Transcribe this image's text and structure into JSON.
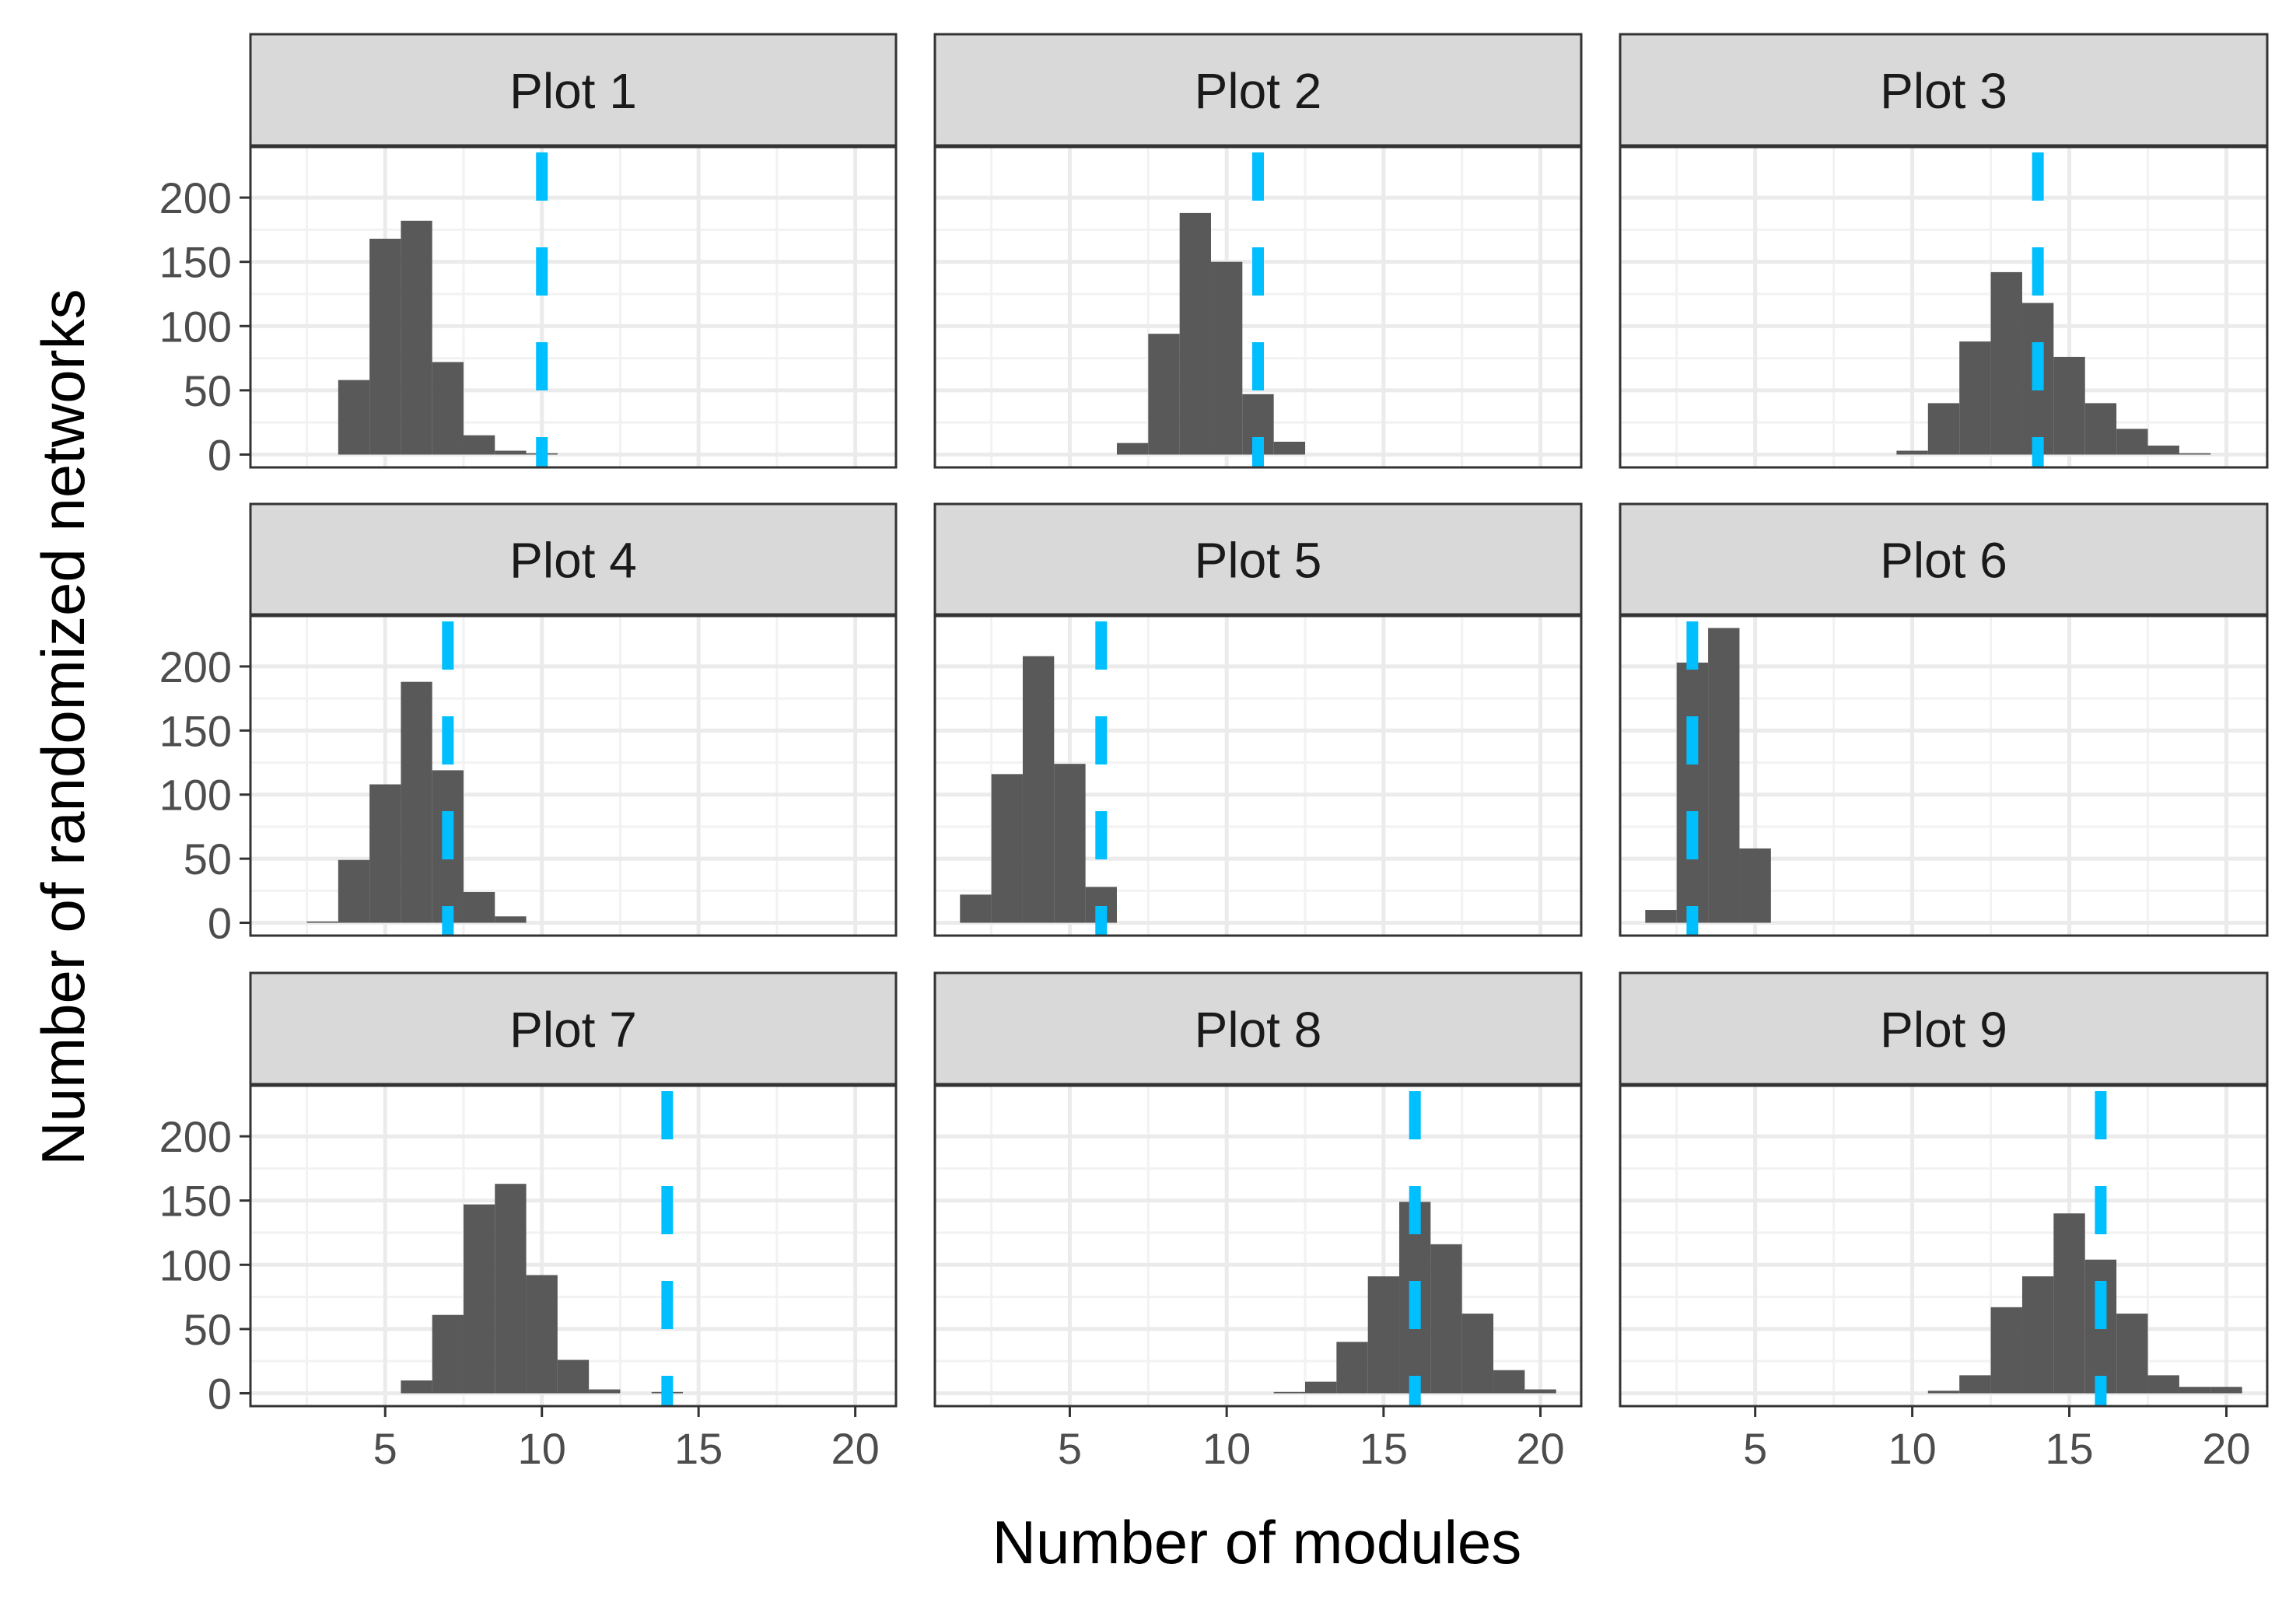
{
  "chart_data": {
    "type": "bar",
    "subtype": "faceted-histogram",
    "xlabel": "Number of modules",
    "ylabel": "Number of randomized networks",
    "xlim": [
      0.7,
      21.3
    ],
    "ylim": [
      -10,
      240
    ],
    "x_ticks": [
      5,
      10,
      15,
      20
    ],
    "y_ticks": [
      0,
      50,
      100,
      150,
      200
    ],
    "bin_width": 1,
    "grid": true,
    "colors": {
      "bars": "#595959",
      "reference_line": "#00bfff",
      "strip_fill": "#d9d9d9"
    },
    "panels": [
      {
        "title": "Plot 1",
        "reference": 10,
        "bins": [
          [
            4,
            58
          ],
          [
            5,
            168
          ],
          [
            6,
            182
          ],
          [
            7,
            72
          ],
          [
            8,
            15
          ],
          [
            9,
            3
          ],
          [
            10,
            1
          ]
        ]
      },
      {
        "title": "Plot 2",
        "reference": 11,
        "bins": [
          [
            7,
            9
          ],
          [
            8,
            94
          ],
          [
            9,
            188
          ],
          [
            10,
            150
          ],
          [
            11,
            47
          ],
          [
            12,
            10
          ]
        ]
      },
      {
        "title": "Plot 3",
        "reference": 14,
        "bins": [
          [
            10,
            3
          ],
          [
            11,
            40
          ],
          [
            12,
            88
          ],
          [
            13,
            142
          ],
          [
            14,
            118
          ],
          [
            15,
            76
          ],
          [
            16,
            40
          ],
          [
            17,
            20
          ],
          [
            18,
            7
          ],
          [
            19,
            1
          ]
        ]
      },
      {
        "title": "Plot 4",
        "reference": 7,
        "bins": [
          [
            3,
            1
          ],
          [
            4,
            49
          ],
          [
            5,
            108
          ],
          [
            6,
            188
          ],
          [
            7,
            119
          ],
          [
            8,
            24
          ],
          [
            9,
            5
          ]
        ]
      },
      {
        "title": "Plot 5",
        "reference": 6,
        "bins": [
          [
            2,
            22
          ],
          [
            3,
            116
          ],
          [
            4,
            208
          ],
          [
            5,
            124
          ],
          [
            6,
            28
          ]
        ]
      },
      {
        "title": "Plot 6",
        "reference": 3,
        "bins": [
          [
            2,
            10
          ],
          [
            3,
            203
          ],
          [
            4,
            230
          ],
          [
            5,
            58
          ]
        ]
      },
      {
        "title": "Plot 7",
        "reference": 14,
        "bins": [
          [
            6,
            10
          ],
          [
            7,
            61
          ],
          [
            8,
            147
          ],
          [
            9,
            163
          ],
          [
            10,
            92
          ],
          [
            11,
            26
          ],
          [
            12,
            3
          ],
          [
            14,
            1
          ]
        ]
      },
      {
        "title": "Plot 8",
        "reference": 16,
        "bins": [
          [
            12,
            1
          ],
          [
            13,
            9
          ],
          [
            14,
            40
          ],
          [
            15,
            91
          ],
          [
            16,
            149
          ],
          [
            17,
            116
          ],
          [
            18,
            62
          ],
          [
            19,
            18
          ],
          [
            20,
            3
          ]
        ]
      },
      {
        "title": "Plot 9",
        "reference": 16,
        "bins": [
          [
            11,
            2
          ],
          [
            12,
            14
          ],
          [
            13,
            67
          ],
          [
            14,
            91
          ],
          [
            15,
            140
          ],
          [
            16,
            104
          ],
          [
            17,
            62
          ],
          [
            18,
            14
          ],
          [
            19,
            5
          ],
          [
            20,
            5
          ]
        ]
      }
    ]
  }
}
